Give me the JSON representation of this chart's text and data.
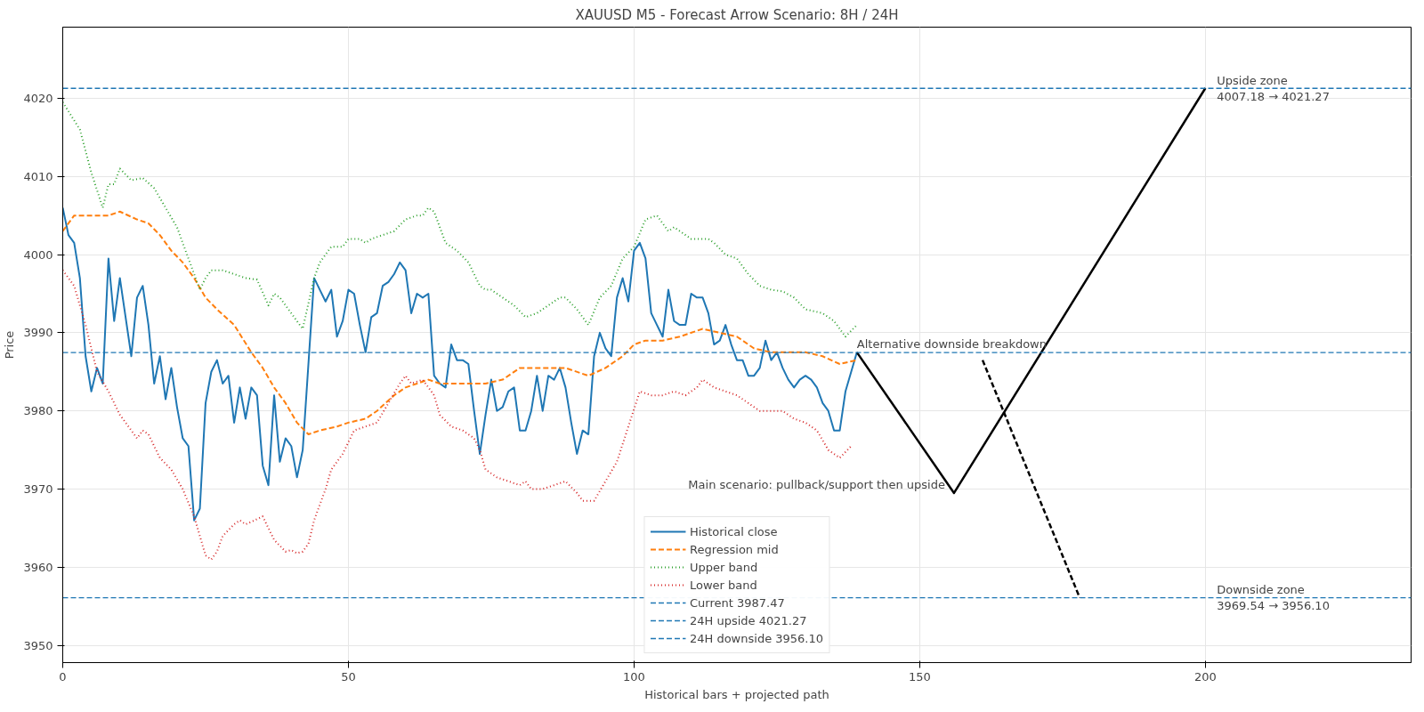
{
  "chart_data": {
    "type": "line",
    "title": "XAUUSD M5 - Forecast Arrow Scenario: 8H / 24H",
    "xlabel": "Historical bars + projected path",
    "ylabel": "Price",
    "xlim": [
      0,
      236
    ],
    "ylim": [
      3947.8,
      4029.1
    ],
    "xticks": [
      0,
      50,
      100,
      150,
      200
    ],
    "yticks": [
      3950,
      3960,
      3970,
      3980,
      3990,
      4000,
      4010,
      4020
    ],
    "grid": true,
    "legend": "bottom",
    "series": [
      {
        "name": "Historical close",
        "color": "#1f77b4",
        "line_style": "solid",
        "x": [
          0,
          1,
          2,
          3,
          4,
          5,
          6,
          7,
          8,
          9,
          10,
          11,
          12,
          13,
          14,
          15,
          16,
          17,
          18,
          19,
          20,
          21,
          22,
          23,
          24,
          25,
          26,
          27,
          28,
          29,
          30,
          31,
          32,
          33,
          34,
          35,
          36,
          37,
          38,
          39,
          40,
          41,
          42,
          43,
          44,
          45,
          46,
          47,
          48,
          49,
          50,
          51,
          52,
          53,
          54,
          55,
          56,
          57,
          58,
          59,
          60,
          61,
          62,
          63,
          64,
          65,
          66,
          67,
          68,
          69,
          70,
          71,
          72,
          73,
          74,
          75,
          76,
          77,
          78,
          79,
          80,
          81,
          82,
          83,
          84,
          85,
          86,
          87,
          88,
          89,
          90,
          91,
          92,
          93,
          94,
          95,
          96,
          97,
          98,
          99,
          100,
          101,
          102,
          103,
          104,
          105,
          106,
          107,
          108,
          109,
          110,
          111,
          112,
          113,
          114,
          115,
          116,
          117,
          118,
          119,
          120,
          121,
          122,
          123,
          124,
          125,
          126,
          127,
          128,
          129,
          130,
          131,
          132,
          133,
          134,
          135,
          136,
          137,
          138,
          139
        ],
        "values": [
          4006,
          4002.5,
          4001.5,
          3997,
          3987,
          3982.5,
          3985.5,
          3983.5,
          3999.5,
          3991.5,
          3997,
          3992,
          3987,
          3994.5,
          3996,
          3991,
          3983.5,
          3987,
          3981.5,
          3985.5,
          3980.5,
          3976.5,
          3975.5,
          3966,
          3967.5,
          3981,
          3985,
          3986.5,
          3983.5,
          3984.5,
          3978.5,
          3983,
          3979,
          3983,
          3982,
          3973,
          3970.5,
          3982,
          3973.5,
          3976.5,
          3975.5,
          3971.5,
          3975,
          3986,
          3997,
          3995.5,
          3994,
          3995.5,
          3989.5,
          3991.5,
          3995.5,
          3995,
          3991,
          3987.5,
          3992,
          3992.5,
          3996,
          3996.5,
          3997.5,
          3999,
          3998,
          3992.5,
          3995,
          3994.5,
          3995,
          3984.5,
          3983.5,
          3983,
          3988.5,
          3986.5,
          3986.5,
          3986,
          3980,
          3974.5,
          3979.5,
          3984,
          3980,
          3980.5,
          3982.5,
          3983,
          3977.5,
          3977.5,
          3980,
          3984.5,
          3980,
          3984.5,
          3984,
          3985.5,
          3983,
          3978.5,
          3974.5,
          3977.5,
          3977,
          3987,
          3990,
          3988,
          3987,
          3994.5,
          3997,
          3994,
          4000.5,
          4001.5,
          3999.5,
          3992.5,
          3991,
          3989.5,
          3995.5,
          3991.5,
          3991,
          3991,
          3995,
          3994.5,
          3994.5,
          3992.5,
          3988.5,
          3989,
          3991,
          3988.5,
          3986.5,
          3986.5,
          3984.5,
          3984.5,
          3985.5,
          3989,
          3986.5,
          3987.5,
          3985.5,
          3984,
          3983,
          3984,
          3984.5,
          3984,
          3983,
          3981,
          3980,
          3977.5,
          3977.5,
          3982.5,
          3985,
          3987.5
        ]
      },
      {
        "name": "Regression mid",
        "color": "#ff7f0e",
        "line_style": "dashed",
        "x": [
          0,
          2,
          5,
          8,
          10,
          13,
          15,
          17,
          19,
          21,
          23,
          25,
          27,
          30,
          33,
          35,
          37,
          39,
          41,
          43,
          45,
          48,
          50,
          53,
          55,
          58,
          60,
          62,
          64,
          66,
          68,
          70,
          74,
          77,
          80,
          84,
          88,
          92,
          95,
          98,
          100,
          102,
          105,
          108,
          112,
          115,
          118,
          121,
          124,
          127,
          130,
          133,
          136,
          139
        ],
        "values": [
          4003,
          4005,
          4005,
          4005,
          4005.5,
          4004.5,
          4004,
          4002.5,
          4000.5,
          3999,
          3997,
          3994.5,
          3993,
          3991,
          3987.5,
          3985.5,
          3983,
          3981,
          3978.5,
          3977,
          3977.5,
          3978,
          3978.5,
          3979,
          3980,
          3982,
          3983,
          3983.5,
          3984,
          3983.5,
          3983.5,
          3983.5,
          3983.5,
          3984,
          3985.5,
          3985.5,
          3985.5,
          3984.5,
          3985.5,
          3987,
          3988.5,
          3989,
          3989,
          3989.5,
          3990.5,
          3990,
          3989.5,
          3988,
          3987.5,
          3987.5,
          3987.5,
          3987,
          3986,
          3986.5
        ]
      },
      {
        "name": "Upper band",
        "color": "#2ca02c",
        "line_style": "dotted",
        "x": [
          0,
          3,
          5,
          7,
          8,
          9,
          10,
          12,
          14,
          16,
          18,
          20,
          22,
          24,
          25,
          26,
          28,
          30,
          32,
          34,
          36,
          37,
          38,
          40,
          42,
          44,
          45,
          47,
          49,
          50,
          52,
          53,
          54,
          56,
          58,
          60,
          62,
          63,
          64,
          65,
          67,
          69,
          71,
          73,
          74,
          75,
          77,
          79,
          81,
          83,
          85,
          87,
          88,
          90,
          92,
          94,
          96,
          98,
          100,
          102,
          104,
          106,
          107,
          109,
          110,
          113,
          114,
          116,
          118,
          120,
          122,
          124,
          126,
          128,
          130,
          133,
          135,
          137,
          139
        ],
        "values": [
          4019.5,
          4016,
          4010.5,
          4006,
          4009,
          4009,
          4011,
          4009.5,
          4009.8,
          4008.5,
          4006,
          4003.5,
          3999.5,
          3995.5,
          3997,
          3998,
          3998,
          3997.5,
          3997,
          3996.8,
          3993.5,
          3995,
          3994.5,
          3992.5,
          3990.5,
          3997,
          3999,
          4001,
          4001,
          4002,
          4002,
          4001.5,
          4002,
          4002.5,
          4003,
          4004.5,
          4005,
          4005,
          4006,
          4005.5,
          4001.5,
          4000.5,
          3999,
          3996,
          3995.5,
          3995.5,
          3994.5,
          3993.5,
          3992,
          3992.5,
          3993.5,
          3994.5,
          3994.5,
          3993,
          3991,
          3994.5,
          3996,
          3999.5,
          4001,
          4004.5,
          4005,
          4003,
          4003.5,
          4002.5,
          4002,
          4002,
          4001.5,
          4000,
          3999.5,
          3997.5,
          3996,
          3995.5,
          3995.3,
          3994.5,
          3993,
          3992.5,
          3991.5,
          3989.5,
          3991
        ]
      },
      {
        "name": "Lower band",
        "color": "#d62728",
        "line_style": "dotted",
        "x": [
          0,
          2,
          4,
          6,
          8,
          10,
          12,
          13,
          14,
          15,
          17,
          19,
          21,
          23,
          24,
          25,
          26,
          27,
          28,
          30,
          31,
          32,
          33,
          35,
          37,
          39,
          40,
          41,
          42,
          43,
          44,
          46,
          47,
          49,
          51,
          53,
          55,
          57,
          59,
          60,
          61,
          63,
          65,
          66,
          68,
          70,
          72,
          73,
          74,
          76,
          78,
          80,
          81,
          82,
          84,
          86,
          88,
          90,
          91,
          93,
          95,
          97,
          99,
          101,
          103,
          105,
          107,
          109,
          111,
          112,
          114,
          116,
          118,
          120,
          122,
          124,
          126,
          128,
          130,
          132,
          134,
          136,
          138
        ],
        "values": [
          3998,
          3996,
          3991,
          3985,
          3982.5,
          3979.5,
          3977.5,
          3976.5,
          3977.5,
          3977,
          3974,
          3972.5,
          3970,
          3966.5,
          3964,
          3961.5,
          3961,
          3962,
          3964,
          3965.5,
          3966,
          3965.5,
          3965.8,
          3966.5,
          3963.5,
          3962,
          3962.2,
          3961.8,
          3962,
          3963,
          3966,
          3970,
          3972.5,
          3974.5,
          3977.5,
          3978,
          3978.5,
          3981,
          3983.5,
          3984.5,
          3983.5,
          3984,
          3982,
          3979.5,
          3978,
          3977.5,
          3976.5,
          3975,
          3972.5,
          3971.5,
          3971,
          3970.5,
          3971,
          3970,
          3970,
          3970.5,
          3971,
          3969.5,
          3968.5,
          3968.5,
          3971,
          3973.5,
          3978,
          3982.5,
          3982,
          3982,
          3982.5,
          3982,
          3983,
          3984,
          3983,
          3982.5,
          3982,
          3981,
          3980,
          3980,
          3980,
          3979,
          3978.5,
          3977.5,
          3975,
          3974,
          3975.5
        ]
      },
      {
        "color": "#000000",
        "line_style": "solid",
        "x": [
          139,
          156,
          200
        ],
        "values": [
          3987.5,
          3969.5,
          4021.3
        ]
      },
      {
        "color": "#000000",
        "line_style": "dashed",
        "x": [
          161,
          178
        ],
        "values": [
          3986.5,
          3956.1
        ]
      }
    ],
    "ref_lines": [
      {
        "axis": "y",
        "value": 3987.47,
        "label": "Current 3987.47",
        "color": "#1f77b4",
        "line_style": "dashed"
      },
      {
        "axis": "y",
        "value": 4021.27,
        "label": "24H upside 4021.27",
        "color": "#1f77b4",
        "line_style": "dashed"
      },
      {
        "axis": "y",
        "value": 3956.1,
        "label": "24H downside 3956.10",
        "color": "#1f77b4",
        "line_style": "dashed"
      }
    ],
    "annotations": [
      {
        "text": "Main scenario: pullback/support then upside",
        "x": 156,
        "y": 3969.54
      },
      {
        "text": "Alternative downside breakdown",
        "x": 139,
        "y": 3987.47
      },
      {
        "text": "Upside zone\n4007.18 → 4021.27",
        "x": 202,
        "y": 4021.27
      },
      {
        "text": "Downside zone\n3969.54 → 3956.10",
        "x": 202,
        "y": 3956.1
      }
    ]
  }
}
